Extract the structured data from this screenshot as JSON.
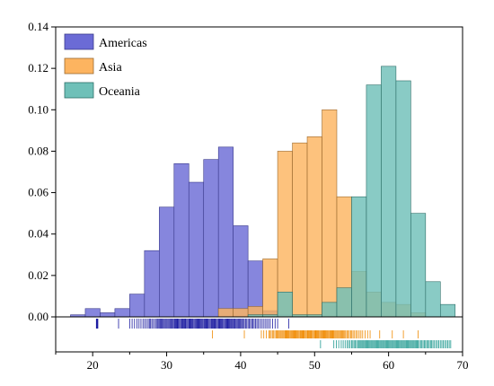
{
  "chart_data": {
    "type": "bar",
    "subtype": "overlapping-histogram-with-rug",
    "title": "",
    "xlabel": "",
    "ylabel": "",
    "xlim": [
      15,
      70
    ],
    "ylim": [
      0,
      0.14
    ],
    "bin_width": 2,
    "x_ticks": [
      20,
      30,
      40,
      50,
      60,
      70
    ],
    "y_ticks": [
      0.0,
      0.02,
      0.04,
      0.06,
      0.08,
      0.1,
      0.12,
      0.14
    ],
    "x_tick_labels": [
      "20",
      "30",
      "40",
      "50",
      "60",
      "70"
    ],
    "y_tick_labels": [
      "0.00",
      "0.02",
      "0.04",
      "0.06",
      "0.08",
      "0.10",
      "0.12",
      "0.14"
    ],
    "grid": false,
    "legend_position": "top-left",
    "series": [
      {
        "name": "Americas",
        "color": "#6b6bd6",
        "edge": "#3a3a8a",
        "rug_color": "#1a1aa0",
        "bins": [
          {
            "x0": 17,
            "x1": 19,
            "y": 0.001
          },
          {
            "x0": 19,
            "x1": 21,
            "y": 0.004
          },
          {
            "x0": 21,
            "x1": 23,
            "y": 0.002
          },
          {
            "x0": 23,
            "x1": 25,
            "y": 0.004
          },
          {
            "x0": 25,
            "x1": 27,
            "y": 0.011
          },
          {
            "x0": 27,
            "x1": 29,
            "y": 0.032
          },
          {
            "x0": 29,
            "x1": 31,
            "y": 0.053
          },
          {
            "x0": 31,
            "x1": 33,
            "y": 0.074
          },
          {
            "x0": 33,
            "x1": 35,
            "y": 0.065
          },
          {
            "x0": 35,
            "x1": 37,
            "y": 0.076
          },
          {
            "x0": 37,
            "x1": 39,
            "y": 0.082
          },
          {
            "x0": 39,
            "x1": 41,
            "y": 0.044
          },
          {
            "x0": 41,
            "x1": 43,
            "y": 0.027
          },
          {
            "x0": 43,
            "x1": 45,
            "y": 0.003
          },
          {
            "x0": 45,
            "x1": 47,
            "y": 0.001
          }
        ],
        "rug": [
          20.5,
          20.7,
          23.5,
          25,
          26,
          26.8,
          27.5,
          28,
          28.6,
          29,
          29.4,
          29.8,
          30.2,
          30.6,
          31,
          31.3,
          31.6,
          32,
          32.3,
          32.6,
          33,
          33.3,
          33.6,
          34,
          34.3,
          34.6,
          35,
          35.3,
          35.6,
          36,
          36.3,
          36.6,
          37,
          37.3,
          37.6,
          38,
          38.3,
          38.6,
          39,
          39.3,
          39.7,
          40.1,
          40.5,
          41,
          41.5,
          42,
          42.6,
          43.3,
          44,
          45,
          46.5
        ]
      },
      {
        "name": "Asia",
        "color": "#fdb460",
        "edge": "#9a6a30",
        "rug_color": "#f08a00",
        "bins": [
          {
            "x0": 37,
            "x1": 39,
            "y": 0.004
          },
          {
            "x0": 39,
            "x1": 41,
            "y": 0.004
          },
          {
            "x0": 41,
            "x1": 43,
            "y": 0.005
          },
          {
            "x0": 43,
            "x1": 45,
            "y": 0.028
          },
          {
            "x0": 45,
            "x1": 47,
            "y": 0.08
          },
          {
            "x0": 47,
            "x1": 49,
            "y": 0.084
          },
          {
            "x0": 49,
            "x1": 51,
            "y": 0.087
          },
          {
            "x0": 51,
            "x1": 53,
            "y": 0.1
          },
          {
            "x0": 53,
            "x1": 55,
            "y": 0.058
          },
          {
            "x0": 55,
            "x1": 57,
            "y": 0.022
          },
          {
            "x0": 57,
            "x1": 59,
            "y": 0.012
          },
          {
            "x0": 59,
            "x1": 61,
            "y": 0.007
          },
          {
            "x0": 61,
            "x1": 63,
            "y": 0.006
          },
          {
            "x0": 63,
            "x1": 65,
            "y": 0.002
          }
        ],
        "rug": [
          36.2,
          40.5,
          42.8,
          43.8,
          44.3,
          44.8,
          45.2,
          45.6,
          46,
          46.3,
          46.6,
          47,
          47.3,
          47.6,
          48,
          48.3,
          48.6,
          49,
          49.3,
          49.6,
          50,
          50.3,
          50.6,
          51,
          51.3,
          51.6,
          52,
          52.3,
          52.6,
          53,
          53.4,
          53.8,
          54.2,
          54.7,
          55.2,
          55.8,
          56.5,
          57.5,
          58.8,
          60.5,
          62,
          64
        ]
      },
      {
        "name": "Oceania",
        "color": "#6fc0b8",
        "edge": "#2e6e68",
        "rug_color": "#1f9a90",
        "bins": [
          {
            "x0": 41,
            "x1": 43,
            "y": 0.001
          },
          {
            "x0": 43,
            "x1": 45,
            "y": 0.001
          },
          {
            "x0": 45,
            "x1": 47,
            "y": 0.012
          },
          {
            "x0": 47,
            "x1": 49,
            "y": 0.001
          },
          {
            "x0": 49,
            "x1": 51,
            "y": 0.001
          },
          {
            "x0": 51,
            "x1": 53,
            "y": 0.007
          },
          {
            "x0": 53,
            "x1": 55,
            "y": 0.014
          },
          {
            "x0": 55,
            "x1": 57,
            "y": 0.058
          },
          {
            "x0": 57,
            "x1": 59,
            "y": 0.112
          },
          {
            "x0": 59,
            "x1": 61,
            "y": 0.121
          },
          {
            "x0": 61,
            "x1": 63,
            "y": 0.114
          },
          {
            "x0": 63,
            "x1": 65,
            "y": 0.05
          },
          {
            "x0": 65,
            "x1": 67,
            "y": 0.017
          },
          {
            "x0": 67,
            "x1": 69,
            "y": 0.006
          }
        ],
        "rug": [
          50.8,
          52.6,
          53.6,
          54.4,
          55,
          55.5,
          56,
          56.4,
          56.8,
          57.2,
          57.6,
          58,
          58.4,
          58.8,
          59.2,
          59.6,
          60,
          60.4,
          60.8,
          61.2,
          61.6,
          62,
          62.4,
          62.8,
          63.2,
          63.6,
          64,
          64.5,
          65,
          65.5,
          66,
          66.6,
          67.2,
          67.8,
          68.4
        ]
      }
    ]
  }
}
